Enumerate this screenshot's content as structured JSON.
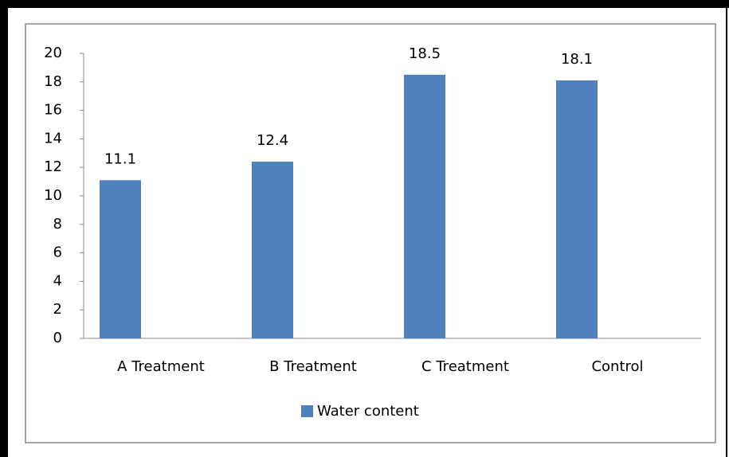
{
  "chart_data": {
    "type": "bar",
    "categories": [
      "A Treatment",
      "B Treatment",
      "C Treatment",
      "Control"
    ],
    "series": [
      {
        "name": "Water content",
        "color": "#4f81bd",
        "values": [
          11.1,
          12.4,
          18.5,
          18.1
        ]
      }
    ],
    "ylim": [
      0,
      20
    ],
    "yticks": [
      0,
      2,
      4,
      6,
      8,
      10,
      12,
      14,
      16,
      18,
      20
    ],
    "grid": false,
    "legend": "bottom"
  }
}
